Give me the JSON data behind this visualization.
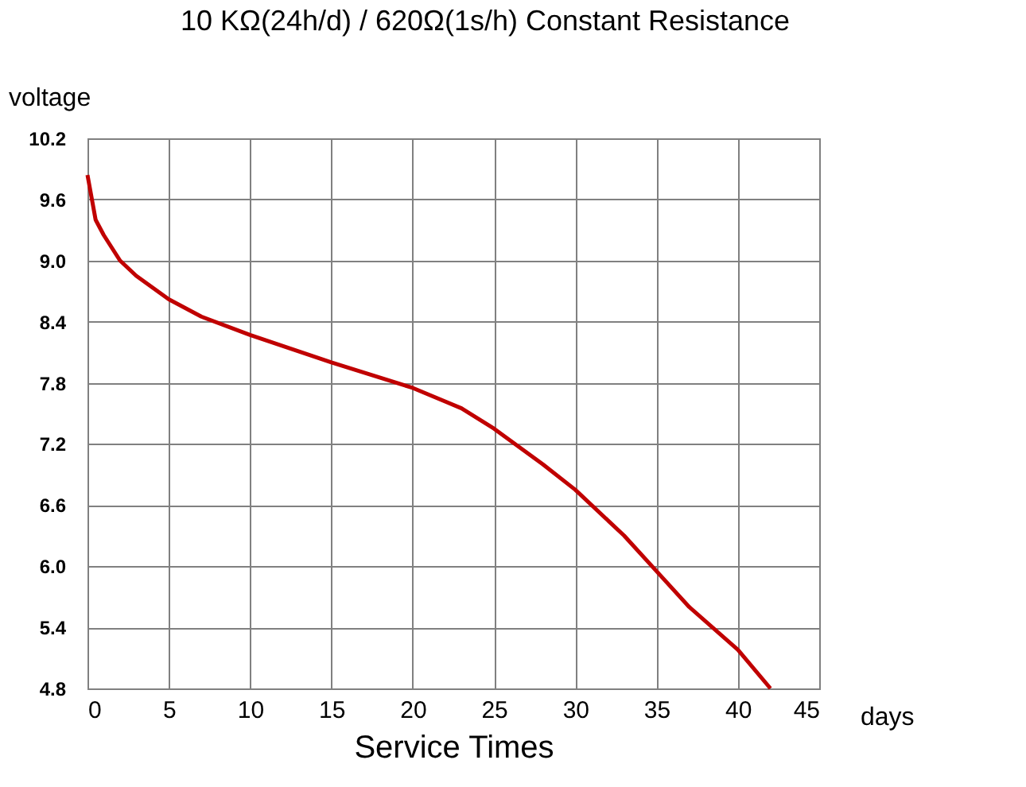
{
  "chart_data": {
    "type": "line",
    "title": "10 KΩ(24h/d) / 620Ω(1s/h) Constant Resistance",
    "xlabel": "Service Times",
    "ylabel": "voltage",
    "annotations": [
      "days"
    ],
    "series": [
      {
        "color": "#c00000",
        "x": [
          0,
          0.5,
          1,
          2,
          3,
          5,
          7,
          10,
          15,
          20,
          23,
          25,
          28,
          30,
          33,
          35,
          37,
          40,
          42
        ],
        "values": [
          9.84,
          9.4,
          9.25,
          9.0,
          8.85,
          8.62,
          8.45,
          8.27,
          8.0,
          7.75,
          7.55,
          7.35,
          7.0,
          6.75,
          6.3,
          5.95,
          5.6,
          5.18,
          4.8
        ]
      }
    ],
    "xlim": [
      0,
      45
    ],
    "xticks": [
      0,
      5,
      10,
      15,
      20,
      25,
      30,
      35,
      40,
      45
    ],
    "ylim": [
      4.8,
      10.2
    ],
    "yticks": [
      4.8,
      5.4,
      {
        "value": 6,
        "label": "6.0"
      },
      6.6,
      7.2,
      7.8,
      8.4,
      {
        "value": 9,
        "label": "9.0"
      },
      9.6,
      10.2
    ],
    "grid": true,
    "marker": "none",
    "line_style": "solid"
  }
}
